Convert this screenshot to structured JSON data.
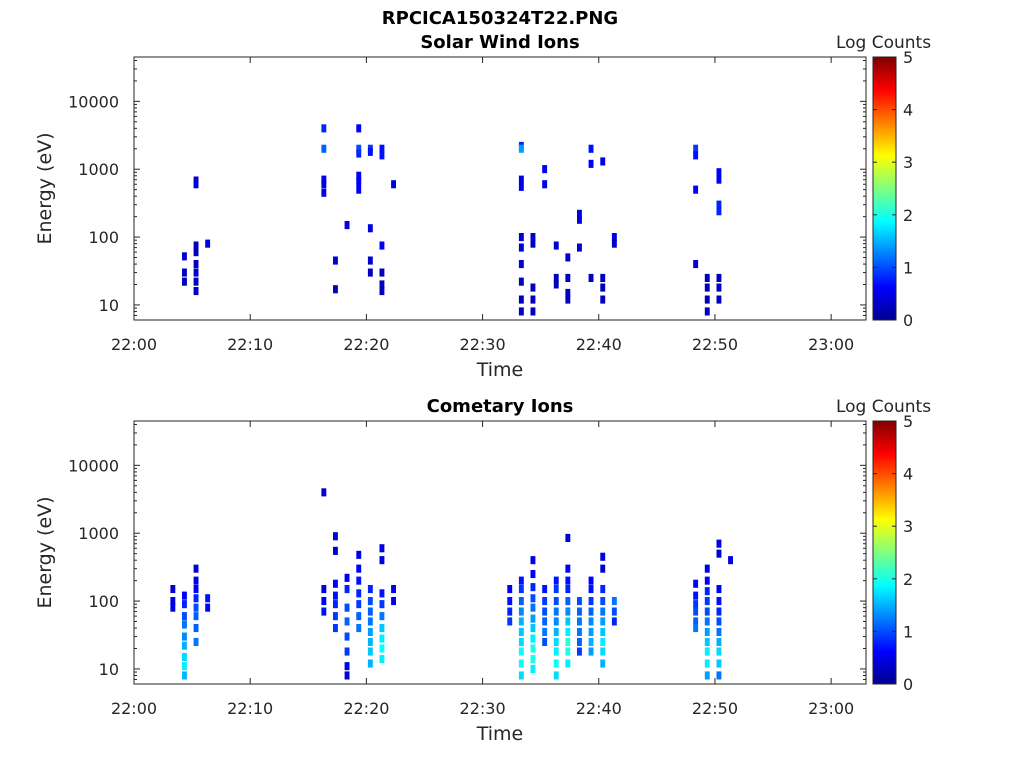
{
  "figure_title": "RPCICA150324T22.PNG",
  "chart_data": [
    {
      "type": "heatmap",
      "title": "Solar Wind Ions",
      "xlabel": "Time",
      "ylabel": "Energy (eV)",
      "yscale": "log",
      "ylim": [
        6,
        45000
      ],
      "xlim": [
        "22:00",
        "23:03"
      ],
      "x_ticks": [
        "22:00",
        "22:10",
        "22:20",
        "22:30",
        "22:40",
        "22:50",
        "23:00"
      ],
      "y_ticks": [
        "10",
        "100",
        "1000",
        "10000"
      ],
      "colorbar": {
        "label": "Log Counts",
        "range": [
          0,
          5
        ],
        "ticks": [
          "0",
          "1",
          "2",
          "3",
          "4",
          "5"
        ],
        "colormap": "jet"
      },
      "grid": false,
      "cells": [
        [
          "22:04",
          22,
          0.3
        ],
        [
          "22:04",
          30,
          0.3
        ],
        [
          "22:04",
          52,
          0.4
        ],
        [
          "22:05",
          16,
          0.3
        ],
        [
          "22:05",
          22,
          0.3
        ],
        [
          "22:05",
          30,
          0.4
        ],
        [
          "22:05",
          40,
          0.3
        ],
        [
          "22:05",
          60,
          0.3
        ],
        [
          "22:05",
          75,
          0.3
        ],
        [
          "22:05",
          600,
          0.5
        ],
        [
          "22:05",
          680,
          0.4
        ],
        [
          "22:06",
          80,
          0.5
        ],
        [
          "22:16",
          4000,
          0.8
        ],
        [
          "22:16",
          2000,
          1.1
        ],
        [
          "22:16",
          700,
          0.6
        ],
        [
          "22:16",
          600,
          0.5
        ],
        [
          "22:16",
          450,
          0.5
        ],
        [
          "22:17",
          17,
          0.3
        ],
        [
          "22:17",
          45,
          0.4
        ],
        [
          "22:18",
          150,
          0.5
        ],
        [
          "22:19",
          4000,
          0.6
        ],
        [
          "22:19",
          2000,
          1.0
        ],
        [
          "22:19",
          1700,
          0.8
        ],
        [
          "22:19",
          800,
          0.6
        ],
        [
          "22:19",
          650,
          0.6
        ],
        [
          "22:19",
          500,
          0.6
        ],
        [
          "22:20",
          135,
          0.5
        ],
        [
          "22:20",
          45,
          0.4
        ],
        [
          "22:20",
          30,
          0.3
        ],
        [
          "22:20",
          2000,
          0.9
        ],
        [
          "22:20",
          1800,
          0.7
        ],
        [
          "22:21",
          2000,
          0.7
        ],
        [
          "22:21",
          1600,
          0.7
        ],
        [
          "22:21",
          30,
          0.3
        ],
        [
          "22:21",
          20,
          0.3
        ],
        [
          "22:21",
          75,
          0.5
        ],
        [
          "22:21",
          16,
          0.3
        ],
        [
          "22:22",
          600,
          0.5
        ],
        [
          "22:33",
          2200,
          0.8
        ],
        [
          "22:33",
          2000,
          1.4
        ],
        [
          "22:33",
          700,
          0.5
        ],
        [
          "22:33",
          550,
          0.5
        ],
        [
          "22:33",
          100,
          0.4
        ],
        [
          "22:33",
          70,
          0.4
        ],
        [
          "22:33",
          40,
          0.4
        ],
        [
          "22:33",
          22,
          0.3
        ],
        [
          "22:33",
          12,
          0.3
        ],
        [
          "22:33",
          8,
          0.3
        ],
        [
          "22:34",
          80,
          0.4
        ],
        [
          "22:34",
          100,
          0.4
        ],
        [
          "22:34",
          18,
          0.3
        ],
        [
          "22:34",
          12,
          0.3
        ],
        [
          "22:34",
          8,
          0.3
        ],
        [
          "22:35",
          1000,
          0.6
        ],
        [
          "22:35",
          600,
          0.5
        ],
        [
          "22:36",
          75,
          0.4
        ],
        [
          "22:36",
          25,
          0.3
        ],
        [
          "22:36",
          20,
          0.3
        ],
        [
          "22:37",
          25,
          0.3
        ],
        [
          "22:37",
          15,
          0.3
        ],
        [
          "22:37",
          12,
          0.3
        ],
        [
          "22:37",
          50,
          0.4
        ],
        [
          "22:38",
          220,
          0.5
        ],
        [
          "22:38",
          180,
          0.5
        ],
        [
          "22:38",
          70,
          0.4
        ],
        [
          "22:39",
          25,
          0.3
        ],
        [
          "22:39",
          1200,
          0.6
        ],
        [
          "22:39",
          2000,
          0.7
        ],
        [
          "22:40",
          25,
          0.3
        ],
        [
          "22:40",
          18,
          0.3
        ],
        [
          "22:40",
          12,
          0.3
        ],
        [
          "22:40",
          1300,
          0.5
        ],
        [
          "22:41",
          100,
          0.5
        ],
        [
          "22:41",
          80,
          0.4
        ],
        [
          "22:48",
          2000,
          0.9
        ],
        [
          "22:48",
          1600,
          0.7
        ],
        [
          "22:48",
          500,
          0.6
        ],
        [
          "22:48",
          40,
          0.4
        ],
        [
          "22:49",
          25,
          0.3
        ],
        [
          "22:49",
          18,
          0.3
        ],
        [
          "22:49",
          12,
          0.3
        ],
        [
          "22:49",
          8,
          0.3
        ],
        [
          "22:50",
          25,
          0.3
        ],
        [
          "22:50",
          18,
          0.3
        ],
        [
          "22:50",
          12,
          0.3
        ],
        [
          "22:50",
          900,
          0.6
        ],
        [
          "22:50",
          700,
          0.6
        ],
        [
          "22:50",
          300,
          0.8
        ],
        [
          "22:50",
          240,
          0.8
        ]
      ]
    },
    {
      "type": "heatmap",
      "title": "Cometary Ions",
      "xlabel": "Time",
      "ylabel": "Energy (eV)",
      "yscale": "log",
      "ylim": [
        6,
        45000
      ],
      "xlim": [
        "22:00",
        "23:03"
      ],
      "x_ticks": [
        "22:00",
        "22:10",
        "22:20",
        "22:30",
        "22:40",
        "22:50",
        "23:00"
      ],
      "y_ticks": [
        "10",
        "100",
        "1000",
        "10000"
      ],
      "colorbar": {
        "label": "Log Counts",
        "range": [
          0,
          5
        ],
        "ticks": [
          "0",
          "1",
          "2",
          "3",
          "4",
          "5"
        ],
        "colormap": "jet"
      },
      "grid": false,
      "cells": [
        [
          "22:03",
          150,
          0.4
        ],
        [
          "22:03",
          100,
          0.5
        ],
        [
          "22:03",
          80,
          0.5
        ],
        [
          "22:04",
          120,
          0.6
        ],
        [
          "22:04",
          90,
          0.8
        ],
        [
          "22:04",
          60,
          1.0
        ],
        [
          "22:04",
          45,
          1.2
        ],
        [
          "22:04",
          30,
          1.3
        ],
        [
          "22:04",
          22,
          1.5
        ],
        [
          "22:04",
          15,
          1.7
        ],
        [
          "22:04",
          11,
          1.8
        ],
        [
          "22:04",
          8,
          1.5
        ],
        [
          "22:05",
          200,
          0.5
        ],
        [
          "22:05",
          150,
          0.6
        ],
        [
          "22:05",
          110,
          0.8
        ],
        [
          "22:05",
          80,
          1.0
        ],
        [
          "22:05",
          60,
          1.1
        ],
        [
          "22:05",
          40,
          1.1
        ],
        [
          "22:05",
          25,
          1.2
        ],
        [
          "22:05",
          300,
          0.4
        ],
        [
          "22:06",
          110,
          0.7
        ],
        [
          "22:06",
          80,
          0.6
        ],
        [
          "22:16",
          4000,
          0.4
        ],
        [
          "22:16",
          150,
          0.5
        ],
        [
          "22:16",
          100,
          0.6
        ],
        [
          "22:16",
          70,
          0.7
        ],
        [
          "22:17",
          900,
          0.4
        ],
        [
          "22:17",
          550,
          0.4
        ],
        [
          "22:17",
          180,
          0.6
        ],
        [
          "22:17",
          120,
          0.7
        ],
        [
          "22:17",
          90,
          0.8
        ],
        [
          "22:17",
          60,
          0.9
        ],
        [
          "22:17",
          40,
          0.9
        ],
        [
          "22:18",
          80,
          1.0
        ],
        [
          "22:18",
          50,
          1.1
        ],
        [
          "22:18",
          30,
          1.0
        ],
        [
          "22:18",
          18,
          0.9
        ],
        [
          "22:18",
          11,
          0.6
        ],
        [
          "22:18",
          8,
          0.4
        ],
        [
          "22:18",
          150,
          0.8
        ],
        [
          "22:18",
          220,
          0.6
        ],
        [
          "22:19",
          300,
          0.6
        ],
        [
          "22:19",
          200,
          0.7
        ],
        [
          "22:19",
          130,
          0.8
        ],
        [
          "22:19",
          90,
          0.9
        ],
        [
          "22:19",
          60,
          1.1
        ],
        [
          "22:19",
          40,
          1.2
        ],
        [
          "22:19",
          480,
          0.5
        ],
        [
          "22:20",
          150,
          0.8
        ],
        [
          "22:20",
          100,
          1.0
        ],
        [
          "22:20",
          70,
          1.1
        ],
        [
          "22:20",
          50,
          1.2
        ],
        [
          "22:20",
          35,
          1.4
        ],
        [
          "22:20",
          25,
          1.5
        ],
        [
          "22:20",
          18,
          1.6
        ],
        [
          "22:20",
          12,
          1.5
        ],
        [
          "22:21",
          40,
          1.6
        ],
        [
          "22:21",
          28,
          1.8
        ],
        [
          "22:21",
          20,
          1.9
        ],
        [
          "22:21",
          14,
          1.8
        ],
        [
          "22:21",
          60,
          1.2
        ],
        [
          "22:21",
          90,
          0.9
        ],
        [
          "22:21",
          130,
          0.7
        ],
        [
          "22:21",
          600,
          0.5
        ],
        [
          "22:21",
          400,
          0.5
        ],
        [
          "22:22",
          150,
          0.6
        ],
        [
          "22:22",
          100,
          0.6
        ],
        [
          "22:32",
          150,
          0.6
        ],
        [
          "22:32",
          100,
          0.7
        ],
        [
          "22:32",
          70,
          0.8
        ],
        [
          "22:32",
          50,
          0.9
        ],
        [
          "22:33",
          200,
          0.7
        ],
        [
          "22:33",
          150,
          0.9
        ],
        [
          "22:33",
          100,
          1.1
        ],
        [
          "22:33",
          70,
          1.3
        ],
        [
          "22:33",
          50,
          1.5
        ],
        [
          "22:33",
          35,
          1.6
        ],
        [
          "22:33",
          25,
          1.7
        ],
        [
          "22:33",
          18,
          1.9
        ],
        [
          "22:33",
          12,
          1.9
        ],
        [
          "22:33",
          8,
          1.7
        ],
        [
          "22:34",
          400,
          0.5
        ],
        [
          "22:34",
          250,
          0.6
        ],
        [
          "22:34",
          160,
          0.8
        ],
        [
          "22:34",
          110,
          1.0
        ],
        [
          "22:34",
          80,
          1.2
        ],
        [
          "22:34",
          55,
          1.4
        ],
        [
          "22:34",
          40,
          1.6
        ],
        [
          "22:34",
          28,
          1.8
        ],
        [
          "22:34",
          20,
          2.0
        ],
        [
          "22:34",
          14,
          2.0
        ],
        [
          "22:34",
          10,
          1.8
        ],
        [
          "22:35",
          150,
          0.7
        ],
        [
          "22:35",
          100,
          0.9
        ],
        [
          "22:35",
          70,
          1.0
        ],
        [
          "22:35",
          50,
          1.1
        ],
        [
          "22:35",
          35,
          1.2
        ],
        [
          "22:35",
          25,
          1.0
        ],
        [
          "22:36",
          200,
          0.7
        ],
        [
          "22:36",
          150,
          0.9
        ],
        [
          "22:36",
          100,
          1.0
        ],
        [
          "22:36",
          70,
          1.2
        ],
        [
          "22:36",
          50,
          1.3
        ],
        [
          "22:36",
          35,
          1.5
        ],
        [
          "22:36",
          25,
          1.7
        ],
        [
          "22:36",
          18,
          1.8
        ],
        [
          "22:36",
          12,
          1.9
        ],
        [
          "22:36",
          8,
          1.7
        ],
        [
          "22:37",
          850,
          0.4
        ],
        [
          "22:37",
          300,
          0.6
        ],
        [
          "22:37",
          200,
          0.7
        ],
        [
          "22:37",
          150,
          0.8
        ],
        [
          "22:37",
          100,
          1.1
        ],
        [
          "22:37",
          70,
          1.3
        ],
        [
          "22:37",
          50,
          1.6
        ],
        [
          "22:37",
          35,
          1.8
        ],
        [
          "22:37",
          25,
          2.1
        ],
        [
          "22:37",
          18,
          2.0
        ],
        [
          "22:37",
          12,
          1.8
        ],
        [
          "22:38",
          100,
          1.0
        ],
        [
          "22:38",
          70,
          1.1
        ],
        [
          "22:38",
          50,
          1.2
        ],
        [
          "22:38",
          35,
          1.2
        ],
        [
          "22:38",
          25,
          1.1
        ],
        [
          "22:38",
          18,
          0.9
        ],
        [
          "22:39",
          200,
          0.6
        ],
        [
          "22:39",
          150,
          0.7
        ],
        [
          "22:39",
          100,
          0.9
        ],
        [
          "22:39",
          70,
          1.1
        ],
        [
          "22:39",
          50,
          1.3
        ],
        [
          "22:39",
          35,
          1.4
        ],
        [
          "22:39",
          25,
          1.5
        ],
        [
          "22:39",
          18,
          1.4
        ],
        [
          "22:40",
          150,
          0.8
        ],
        [
          "22:40",
          100,
          1.0
        ],
        [
          "22:40",
          70,
          1.2
        ],
        [
          "22:40",
          50,
          1.4
        ],
        [
          "22:40",
          35,
          1.6
        ],
        [
          "22:40",
          25,
          1.8
        ],
        [
          "22:40",
          18,
          1.7
        ],
        [
          "22:40",
          12,
          1.5
        ],
        [
          "22:40",
          450,
          0.5
        ],
        [
          "22:40",
          300,
          0.4
        ],
        [
          "22:41",
          100,
          1.2
        ],
        [
          "22:41",
          70,
          1.0
        ],
        [
          "22:41",
          50,
          0.8
        ],
        [
          "22:48",
          180,
          0.6
        ],
        [
          "22:48",
          120,
          0.7
        ],
        [
          "22:48",
          90,
          0.9
        ],
        [
          "22:48",
          70,
          1.0
        ],
        [
          "22:48",
          50,
          1.1
        ],
        [
          "22:48",
          40,
          1.2
        ],
        [
          "22:49",
          300,
          0.5
        ],
        [
          "22:49",
          200,
          0.6
        ],
        [
          "22:49",
          140,
          0.8
        ],
        [
          "22:49",
          100,
          0.9
        ],
        [
          "22:49",
          70,
          1.0
        ],
        [
          "22:49",
          50,
          1.2
        ],
        [
          "22:49",
          35,
          1.4
        ],
        [
          "22:49",
          25,
          1.6
        ],
        [
          "22:49",
          18,
          1.8
        ],
        [
          "22:49",
          12,
          1.8
        ],
        [
          "22:49",
          8,
          1.4
        ],
        [
          "22:50",
          700,
          0.5
        ],
        [
          "22:50",
          500,
          0.4
        ],
        [
          "22:50",
          150,
          0.6
        ],
        [
          "22:50",
          100,
          0.7
        ],
        [
          "22:50",
          70,
          0.8
        ],
        [
          "22:50",
          50,
          1.0
        ],
        [
          "22:50",
          35,
          1.2
        ],
        [
          "22:50",
          25,
          1.5
        ],
        [
          "22:50",
          18,
          1.7
        ],
        [
          "22:50",
          12,
          1.6
        ],
        [
          "22:50",
          8,
          1.2
        ],
        [
          "22:51",
          400,
          0.5
        ]
      ]
    }
  ]
}
